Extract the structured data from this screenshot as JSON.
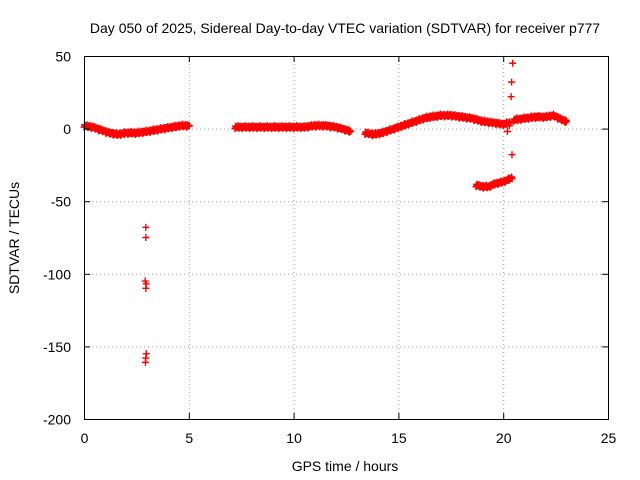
{
  "chart_data": {
    "type": "scatter",
    "title": "Day 050 of 2025, Sidereal Day-to-day VTEC variation (SDTVAR) for receiver p777",
    "xlabel": "GPS time / hours",
    "ylabel": "SDTVAR / TECUs",
    "xlim": [
      0,
      25
    ],
    "ylim": [
      -200,
      50
    ],
    "xticks": [
      0,
      5,
      10,
      15,
      20,
      25
    ],
    "yticks": [
      50,
      0,
      -50,
      -100,
      -150,
      -200
    ],
    "grid": true,
    "marker": "plus",
    "color": "#ff0000",
    "series": [
      {
        "name": "SDTVAR",
        "segments": [
          {
            "x0": 0.0,
            "x1": 5.0,
            "points": [
              [
                0.0,
                2
              ],
              [
                0.4,
                1
              ],
              [
                0.8,
                -1
              ],
              [
                1.2,
                -3
              ],
              [
                1.6,
                -4
              ],
              [
                2.0,
                -3
              ],
              [
                2.5,
                -3
              ],
              [
                3.0,
                -2
              ],
              [
                3.4,
                -1
              ],
              [
                3.8,
                0
              ],
              [
                4.2,
                1
              ],
              [
                4.6,
                2
              ],
              [
                5.0,
                2
              ]
            ]
          },
          {
            "x0": 7.2,
            "x1": 12.7,
            "points": [
              [
                7.2,
                1
              ],
              [
                8.0,
                1
              ],
              [
                9.0,
                1
              ],
              [
                10.0,
                1
              ],
              [
                10.5,
                1
              ],
              [
                11.0,
                2
              ],
              [
                11.5,
                2
              ],
              [
                12.0,
                1
              ],
              [
                12.5,
                -1
              ],
              [
                12.7,
                -2
              ]
            ]
          },
          {
            "x0": 13.4,
            "x1": 16.5,
            "points": [
              [
                13.4,
                -3
              ],
              [
                13.8,
                -4
              ],
              [
                14.2,
                -3
              ],
              [
                14.6,
                -1
              ],
              [
                15.0,
                1
              ],
              [
                15.4,
                3
              ],
              [
                15.8,
                5
              ],
              [
                16.2,
                7
              ],
              [
                16.5,
                8
              ]
            ]
          },
          {
            "x0": 16.5,
            "x1": 20.3,
            "points": [
              [
                16.5,
                8
              ],
              [
                17.0,
                9
              ],
              [
                17.5,
                9
              ],
              [
                18.0,
                8
              ],
              [
                18.5,
                7
              ],
              [
                19.0,
                5
              ],
              [
                19.5,
                4
              ],
              [
                20.0,
                3
              ],
              [
                20.3,
                4
              ]
            ]
          },
          {
            "x0": 18.7,
            "x1": 20.4,
            "points": [
              [
                18.7,
                -39
              ],
              [
                19.0,
                -40
              ],
              [
                19.3,
                -40
              ],
              [
                19.6,
                -38
              ],
              [
                19.9,
                -37
              ],
              [
                20.1,
                -36
              ],
              [
                20.4,
                -34
              ]
            ]
          },
          {
            "x0": 20.5,
            "x1": 23.0,
            "points": [
              [
                20.5,
                6
              ],
              [
                21.0,
                7
              ],
              [
                21.5,
                8
              ],
              [
                22.0,
                8
              ],
              [
                22.4,
                9
              ],
              [
                22.8,
                6
              ],
              [
                23.0,
                5
              ]
            ]
          }
        ],
        "outliers": [
          [
            2.95,
            -68
          ],
          [
            2.95,
            -75
          ],
          [
            2.92,
            -105
          ],
          [
            2.97,
            -107
          ],
          [
            2.95,
            -110
          ],
          [
            2.97,
            -155
          ],
          [
            2.95,
            -158
          ],
          [
            2.93,
            -161
          ],
          [
            20.45,
            45
          ],
          [
            20.4,
            32
          ],
          [
            20.38,
            22
          ],
          [
            20.42,
            -18
          ],
          [
            20.2,
            -2
          ],
          [
            20.3,
            2
          ]
        ]
      }
    ]
  }
}
